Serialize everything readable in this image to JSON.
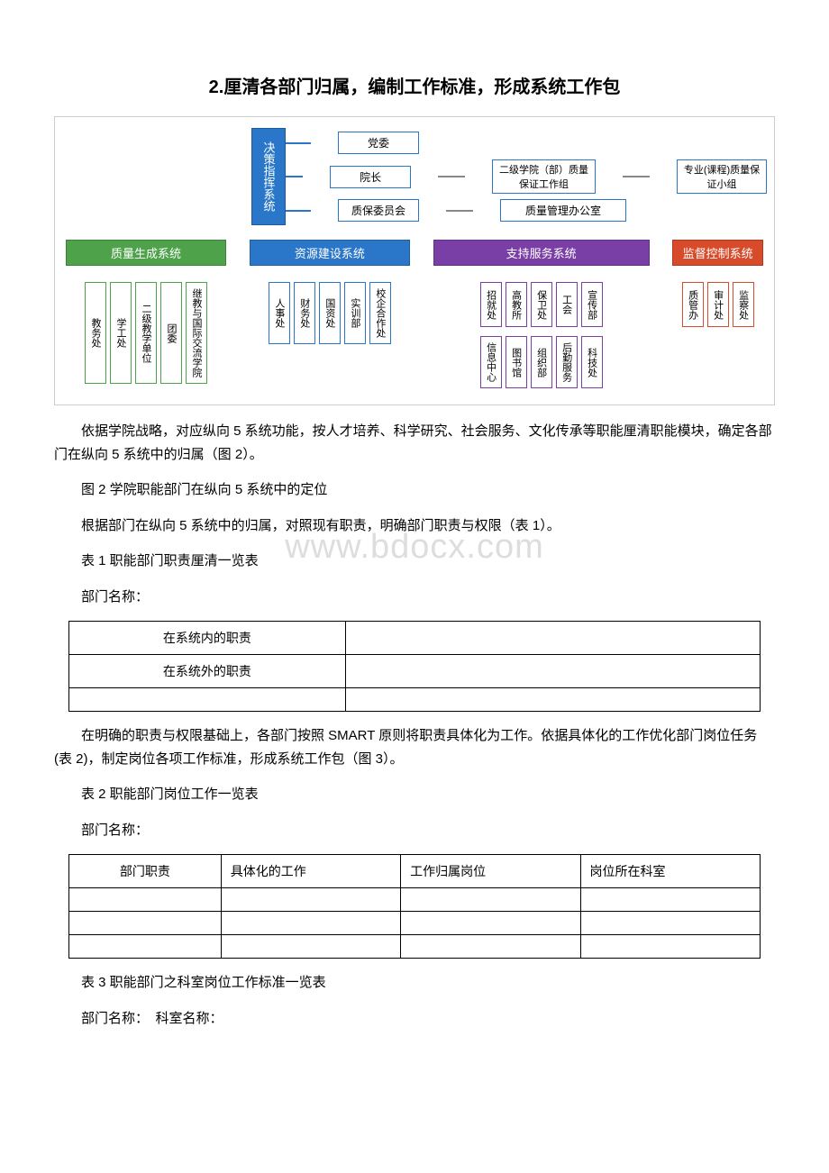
{
  "title": "2.厘清各部门归属，编制工作标准，形成系统工作包",
  "watermark": "www.bdocx.com",
  "diagram": {
    "decision_label": "决策指挥系统",
    "decision_bg": "#2a77c9",
    "top_nodes": {
      "row1": [
        "党委"
      ],
      "row2": [
        "院长",
        "二级学院（部）质量保证工作组",
        "专业(课程)质量保证小组"
      ],
      "row3": [
        "质保委员会",
        "质量管理办公室"
      ]
    },
    "systems": [
      {
        "label": "质量生成系统",
        "header_bg": "#4da24a",
        "border": "#4da24a",
        "children": [
          "教务处",
          "学工处",
          "二级教学单位",
          "团委",
          "继教与国际交流学院"
        ]
      },
      {
        "label": "资源建设系统",
        "header_bg": "#2a77c9",
        "border": "#2a77c9",
        "children": [
          "人事处",
          "财务处",
          "国资处",
          "实训部",
          "校企合作处"
        ]
      },
      {
        "label": "支持服务系统",
        "header_bg": "#7a3fa6",
        "border": "#7a3fa6",
        "children": [
          "招就处",
          "高教所",
          "保卫处",
          "工会",
          "宣传部"
        ],
        "children2": [
          "信息中心",
          "图书馆",
          "组织部",
          "后勤服务",
          "科技处"
        ]
      },
      {
        "label": "监督控制系统",
        "header_bg": "#d84b2a",
        "border": "#d84b2a",
        "children": [
          "质管办",
          "审计处",
          "监察处"
        ]
      }
    ]
  },
  "paragraphs": {
    "p1": "依据学院战略，对应纵向 5 系统功能，按人才培养、科学研究、社会服务、文化传承等职能厘清职能模块，确定各部门在纵向 5 系统中的归属（图 2）。",
    "cap_fig2": "图 2 学院职能部门在纵向 5 系统中的定位",
    "p2": "根据部门在纵向 5 系统中的归属，对照现有职责，明确部门职责与权限（表 1）。",
    "cap_t1": "表 1 职能部门职责厘清一览表",
    "dept_label1": "部门名称：",
    "p3": "在明确的职责与权限基础上，各部门按照 SMART 原则将职责具体化为工作。依据具体化的工作优化部门岗位任务(表 2)，制定岗位各项工作标准，形成系统工作包（图 3）。",
    "cap_t2": "表 2 职能部门岗位工作一览表",
    "dept_label2": "部门名称：",
    "cap_t3": "表 3 职能部门之科室岗位工作标准一览表",
    "dept_label3": "部门名称：　科室名称："
  },
  "table1": {
    "rows": [
      [
        "在系统内的职责",
        ""
      ],
      [
        "在系统外的职责",
        ""
      ],
      [
        "",
        ""
      ]
    ]
  },
  "table2": {
    "headers": [
      "部门职责",
      "具体化的工作",
      "工作归属岗位",
      "岗位所在科室"
    ]
  }
}
